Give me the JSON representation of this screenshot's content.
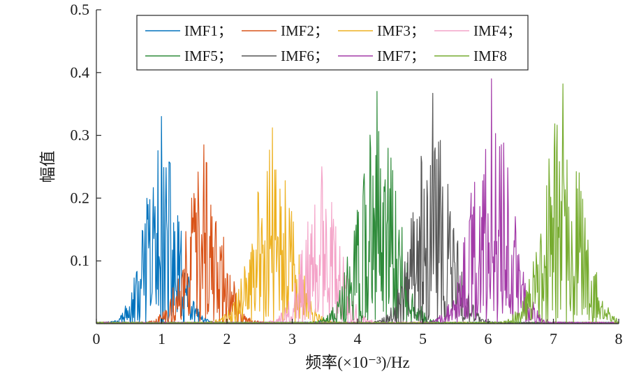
{
  "chart_data": {
    "type": "line",
    "title": "",
    "xlabel": "频率(×10⁻³)/Hz",
    "ylabel": "幅值",
    "xlim": [
      0,
      8
    ],
    "ylim": [
      0,
      0.5
    ],
    "x_ticks": [
      0,
      1,
      2,
      3,
      4,
      5,
      6,
      7,
      8
    ],
    "y_ticks": [
      0.1,
      0.2,
      0.3,
      0.4,
      0.5
    ],
    "x_tick_labels": [
      "0",
      "1",
      "2",
      "3",
      "4",
      "5",
      "6",
      "7",
      "8"
    ],
    "y_tick_labels": [
      "0.1",
      "0.2",
      "0.3",
      "0.4",
      "0.5"
    ],
    "grid": false,
    "legend_position": "top-center",
    "series": [
      {
        "name": "IMF1",
        "legend_label": "IMF1；",
        "color": "#0072BD",
        "center": 1.0,
        "spread": 0.25,
        "peak": 0.33
      },
      {
        "name": "IMF2",
        "legend_label": "IMF2；",
        "color": "#D95319",
        "center": 1.65,
        "spread": 0.28,
        "peak": 0.285
      },
      {
        "name": "IMF3",
        "legend_label": "IMF3；",
        "color": "#EDB120",
        "center": 2.7,
        "spread": 0.3,
        "peak": 0.312
      },
      {
        "name": "IMF4",
        "legend_label": "IMF4；",
        "color": "#F4A3C8",
        "center": 3.45,
        "spread": 0.27,
        "peak": 0.25
      },
      {
        "name": "IMF5",
        "legend_label": "IMF5；",
        "color": "#2E8B3A",
        "center": 4.3,
        "spread": 0.3,
        "peak": 0.37
      },
      {
        "name": "IMF6",
        "legend_label": "IMF6；",
        "color": "#555555",
        "center": 5.15,
        "spread": 0.28,
        "peak": 0.367
      },
      {
        "name": "IMF7",
        "legend_label": "IMF7；",
        "color": "#A33AA8",
        "center": 6.05,
        "spread": 0.3,
        "peak": 0.39
      },
      {
        "name": "IMF8",
        "legend_label": "IMF8",
        "color": "#77AC30",
        "center": 7.15,
        "spread": 0.3,
        "peak": 0.382
      }
    ]
  }
}
